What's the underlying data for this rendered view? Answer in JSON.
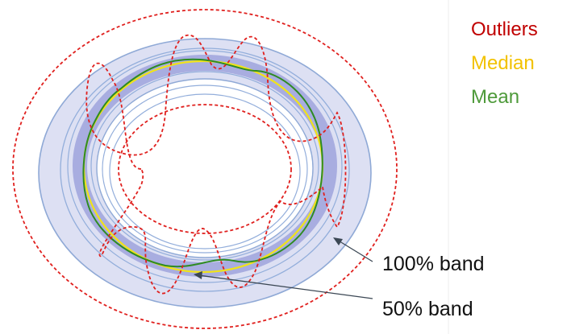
{
  "legend": {
    "items": [
      {
        "label": "Outliers",
        "color": "#C00000"
      },
      {
        "label": "Median",
        "color": "#F2C200"
      },
      {
        "label": "Mean",
        "color": "#4E9A3A"
      }
    ]
  },
  "annotations": {
    "band_100": "100% band",
    "band_50": "50% band"
  },
  "colors": {
    "outer_band_fill": "#dde0f3",
    "outer_band_stroke": "#8fa9d6",
    "inner_band_fill": "#9fa3dc",
    "contour_stroke": "#93aedb",
    "outlier": "#E0201E",
    "median": "#F0E31A",
    "mean": "#2E8B22",
    "divider": "#eeeeee"
  }
}
